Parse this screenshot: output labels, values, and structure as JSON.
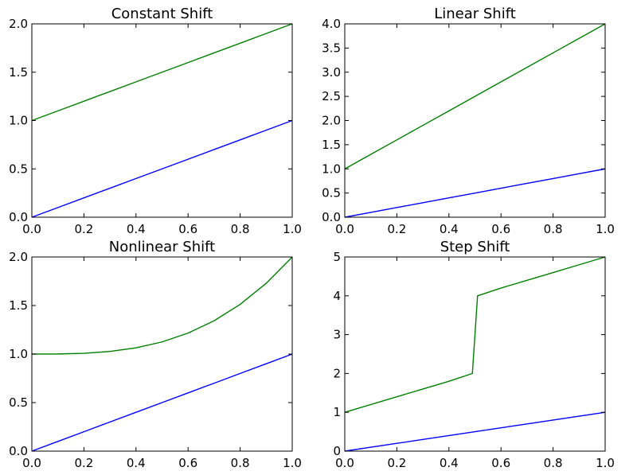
{
  "chart_data": [
    {
      "type": "line",
      "title": "Constant Shift",
      "xlabel": "",
      "ylabel": "",
      "xlim": [
        0,
        1
      ],
      "ylim": [
        0,
        2
      ],
      "xticks": [
        0,
        0.2,
        0.4,
        0.6,
        0.8,
        1
      ],
      "xtick_labels": [
        "0.0",
        "0.2",
        "0.4",
        "0.6",
        "0.8",
        "1.0"
      ],
      "yticks": [
        0,
        0.5,
        1,
        1.5,
        2
      ],
      "ytick_labels": [
        "0.0",
        "0.5",
        "1.0",
        "1.5",
        "2.0"
      ],
      "grid": false,
      "series": [
        {
          "color": "#0000ff",
          "x": [
            0,
            0.1,
            0.2,
            0.3,
            0.4,
            0.5,
            0.6,
            0.7,
            0.8,
            0.9,
            1
          ],
          "y": [
            0,
            0.1,
            0.2,
            0.3,
            0.4,
            0.5,
            0.6,
            0.7,
            0.8,
            0.9,
            1
          ]
        },
        {
          "color": "#008000",
          "x": [
            0,
            0.1,
            0.2,
            0.3,
            0.4,
            0.5,
            0.6,
            0.7,
            0.8,
            0.9,
            1
          ],
          "y": [
            1,
            1.1,
            1.2,
            1.3,
            1.4,
            1.5,
            1.6,
            1.7,
            1.8,
            1.9,
            2
          ]
        }
      ]
    },
    {
      "type": "line",
      "title": "Linear Shift",
      "xlabel": "",
      "ylabel": "",
      "xlim": [
        0,
        1
      ],
      "ylim": [
        0,
        4
      ],
      "xticks": [
        0,
        0.2,
        0.4,
        0.6,
        0.8,
        1
      ],
      "xtick_labels": [
        "0.0",
        "0.2",
        "0.4",
        "0.6",
        "0.8",
        "1.0"
      ],
      "yticks": [
        0,
        0.5,
        1,
        1.5,
        2,
        2.5,
        3,
        3.5,
        4
      ],
      "ytick_labels": [
        "0.0",
        "0.5",
        "1.0",
        "1.5",
        "2.0",
        "2.5",
        "3.0",
        "3.5",
        "4.0"
      ],
      "grid": false,
      "series": [
        {
          "color": "#0000ff",
          "x": [
            0,
            0.1,
            0.2,
            0.3,
            0.4,
            0.5,
            0.6,
            0.7,
            0.8,
            0.9,
            1
          ],
          "y": [
            0,
            0.1,
            0.2,
            0.3,
            0.4,
            0.5,
            0.6,
            0.7,
            0.8,
            0.9,
            1
          ]
        },
        {
          "color": "#008000",
          "x": [
            0,
            0.1,
            0.2,
            0.3,
            0.4,
            0.5,
            0.6,
            0.7,
            0.8,
            0.9,
            1
          ],
          "y": [
            1,
            1.3,
            1.6,
            1.9,
            2.2,
            2.5,
            2.8,
            3.1,
            3.4,
            3.7,
            4
          ]
        }
      ]
    },
    {
      "type": "line",
      "title": "Nonlinear Shift",
      "xlabel": "",
      "ylabel": "",
      "xlim": [
        0,
        1
      ],
      "ylim": [
        0,
        2
      ],
      "xticks": [
        0,
        0.2,
        0.4,
        0.6,
        0.8,
        1
      ],
      "xtick_labels": [
        "0.0",
        "0.2",
        "0.4",
        "0.6",
        "0.8",
        "1.0"
      ],
      "yticks": [
        0,
        0.5,
        1,
        1.5,
        2
      ],
      "ytick_labels": [
        "0.0",
        "0.5",
        "1.0",
        "1.5",
        "2.0"
      ],
      "grid": false,
      "series": [
        {
          "color": "#0000ff",
          "x": [
            0,
            0.1,
            0.2,
            0.3,
            0.4,
            0.5,
            0.6,
            0.7,
            0.8,
            0.9,
            1
          ],
          "y": [
            0,
            0.1,
            0.2,
            0.3,
            0.4,
            0.5,
            0.6,
            0.7,
            0.8,
            0.9,
            1
          ]
        },
        {
          "color": "#008000",
          "x": [
            0,
            0.1,
            0.2,
            0.3,
            0.4,
            0.5,
            0.6,
            0.7,
            0.8,
            0.9,
            1
          ],
          "y": [
            1,
            1.001,
            1.008,
            1.027,
            1.064,
            1.125,
            1.216,
            1.343,
            1.512,
            1.729,
            2
          ]
        }
      ]
    },
    {
      "type": "line",
      "title": "Step Shift",
      "xlabel": "",
      "ylabel": "",
      "xlim": [
        0,
        1
      ],
      "ylim": [
        0,
        5
      ],
      "xticks": [
        0,
        0.2,
        0.4,
        0.6,
        0.8,
        1
      ],
      "xtick_labels": [
        "0.0",
        "0.2",
        "0.4",
        "0.6",
        "0.8",
        "1.0"
      ],
      "yticks": [
        0,
        1,
        2,
        3,
        4,
        5
      ],
      "ytick_labels": [
        "0",
        "1",
        "2",
        "3",
        "4",
        "5"
      ],
      "grid": false,
      "series": [
        {
          "color": "#0000ff",
          "x": [
            0,
            0.1,
            0.2,
            0.3,
            0.4,
            0.5,
            0.6,
            0.7,
            0.8,
            0.9,
            1
          ],
          "y": [
            0,
            0.1,
            0.2,
            0.3,
            0.4,
            0.5,
            0.6,
            0.7,
            0.8,
            0.9,
            1
          ]
        },
        {
          "color": "#008000",
          "x": [
            0,
            0.1,
            0.2,
            0.3,
            0.4,
            0.49,
            0.51,
            0.6,
            0.7,
            0.8,
            0.9,
            1
          ],
          "y": [
            1,
            1.2,
            1.4,
            1.6,
            1.8,
            2,
            4,
            4.2,
            4.4,
            4.6,
            4.8,
            5
          ]
        }
      ]
    }
  ]
}
